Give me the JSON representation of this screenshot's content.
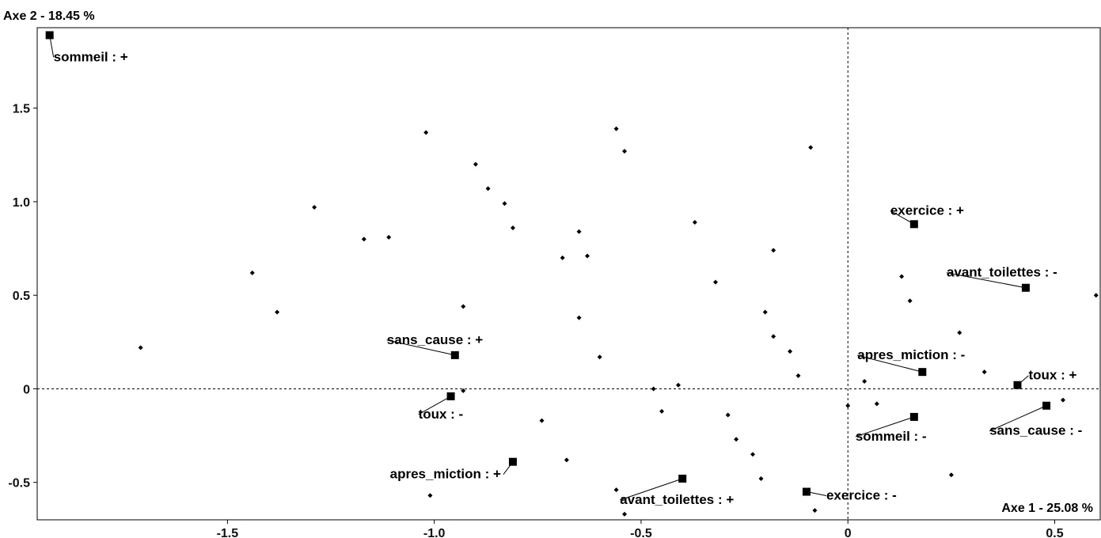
{
  "chart_data": {
    "type": "scatter",
    "title": "",
    "xlabel": "Axe 1  -  25.08 %",
    "ylabel": "Axe 2  -  18.45 %",
    "xlim": [
      -1.96,
      0.61
    ],
    "ylim": [
      -0.7,
      1.93
    ],
    "x_ticks": [
      -1.5,
      -1.0,
      -0.5,
      0,
      0.5
    ],
    "x_tick_labels": [
      "-1.5",
      "-1.0",
      "-0.5",
      "0",
      "0.5"
    ],
    "y_ticks": [
      1.5,
      1.0,
      0.5,
      0,
      -0.5
    ],
    "y_tick_labels": [
      "1.5",
      "1.0",
      "0.5",
      "0",
      "-0.5"
    ],
    "reference_lines": {
      "x": 0,
      "y": 0,
      "style": "dashed"
    },
    "grid": false,
    "modalities": [
      {
        "label": "sommeil : +",
        "x": -1.93,
        "y": 1.89
      },
      {
        "label": "exercice : +",
        "x": 0.16,
        "y": 0.88
      },
      {
        "label": "avant_toilettes : -",
        "x": 0.43,
        "y": 0.54
      },
      {
        "label": "sans_cause : +",
        "x": -0.95,
        "y": 0.18
      },
      {
        "label": "apres_miction : -",
        "x": 0.18,
        "y": 0.09
      },
      {
        "label": "toux : +",
        "x": 0.41,
        "y": 0.02
      },
      {
        "label": "toux : -",
        "x": -0.96,
        "y": -0.04
      },
      {
        "label": "sans_cause : -",
        "x": 0.48,
        "y": -0.09
      },
      {
        "label": "sommeil : -",
        "x": 0.16,
        "y": -0.15
      },
      {
        "label": "apres_miction : +",
        "x": -0.81,
        "y": -0.39
      },
      {
        "label": "avant_toilettes : +",
        "x": -0.4,
        "y": -0.48
      },
      {
        "label": "exercice : -",
        "x": -0.1,
        "y": -0.55
      }
    ],
    "individuals": [
      [
        -1.71,
        0.22
      ],
      [
        -1.44,
        0.62
      ],
      [
        -1.38,
        0.41
      ],
      [
        -1.29,
        0.97
      ],
      [
        -1.17,
        0.8
      ],
      [
        -1.11,
        0.81
      ],
      [
        -1.02,
        1.37
      ],
      [
        -1.01,
        -0.57
      ],
      [
        -0.93,
        0.44
      ],
      [
        -0.93,
        -0.01
      ],
      [
        -0.9,
        1.2
      ],
      [
        -0.87,
        1.07
      ],
      [
        -0.83,
        0.99
      ],
      [
        -0.81,
        0.86
      ],
      [
        -0.74,
        -0.17
      ],
      [
        -0.69,
        0.7
      ],
      [
        -0.68,
        -0.38
      ],
      [
        -0.65,
        0.84
      ],
      [
        -0.65,
        0.38
      ],
      [
        -0.63,
        0.71
      ],
      [
        -0.6,
        0.17
      ],
      [
        -0.56,
        1.39
      ],
      [
        -0.56,
        -0.54
      ],
      [
        -0.54,
        1.27
      ],
      [
        -0.54,
        -0.67
      ],
      [
        -0.47,
        0.0
      ],
      [
        -0.45,
        -0.12
      ],
      [
        -0.41,
        0.02
      ],
      [
        -0.37,
        0.89
      ],
      [
        -0.32,
        0.57
      ],
      [
        -0.29,
        -0.14
      ],
      [
        -0.27,
        -0.27
      ],
      [
        -0.23,
        -0.35
      ],
      [
        -0.21,
        -0.48
      ],
      [
        -0.2,
        0.41
      ],
      [
        -0.18,
        0.74
      ],
      [
        -0.18,
        0.28
      ],
      [
        -0.14,
        0.2
      ],
      [
        -0.12,
        0.07
      ],
      [
        -0.09,
        1.29
      ],
      [
        -0.08,
        -0.65
      ],
      [
        0.0,
        -0.09
      ],
      [
        0.04,
        0.04
      ],
      [
        0.07,
        -0.08
      ],
      [
        0.13,
        0.6
      ],
      [
        0.15,
        0.47
      ],
      [
        0.25,
        -0.46
      ],
      [
        0.27,
        0.3
      ],
      [
        0.33,
        0.09
      ],
      [
        0.52,
        -0.06
      ],
      [
        0.6,
        0.5
      ]
    ]
  }
}
